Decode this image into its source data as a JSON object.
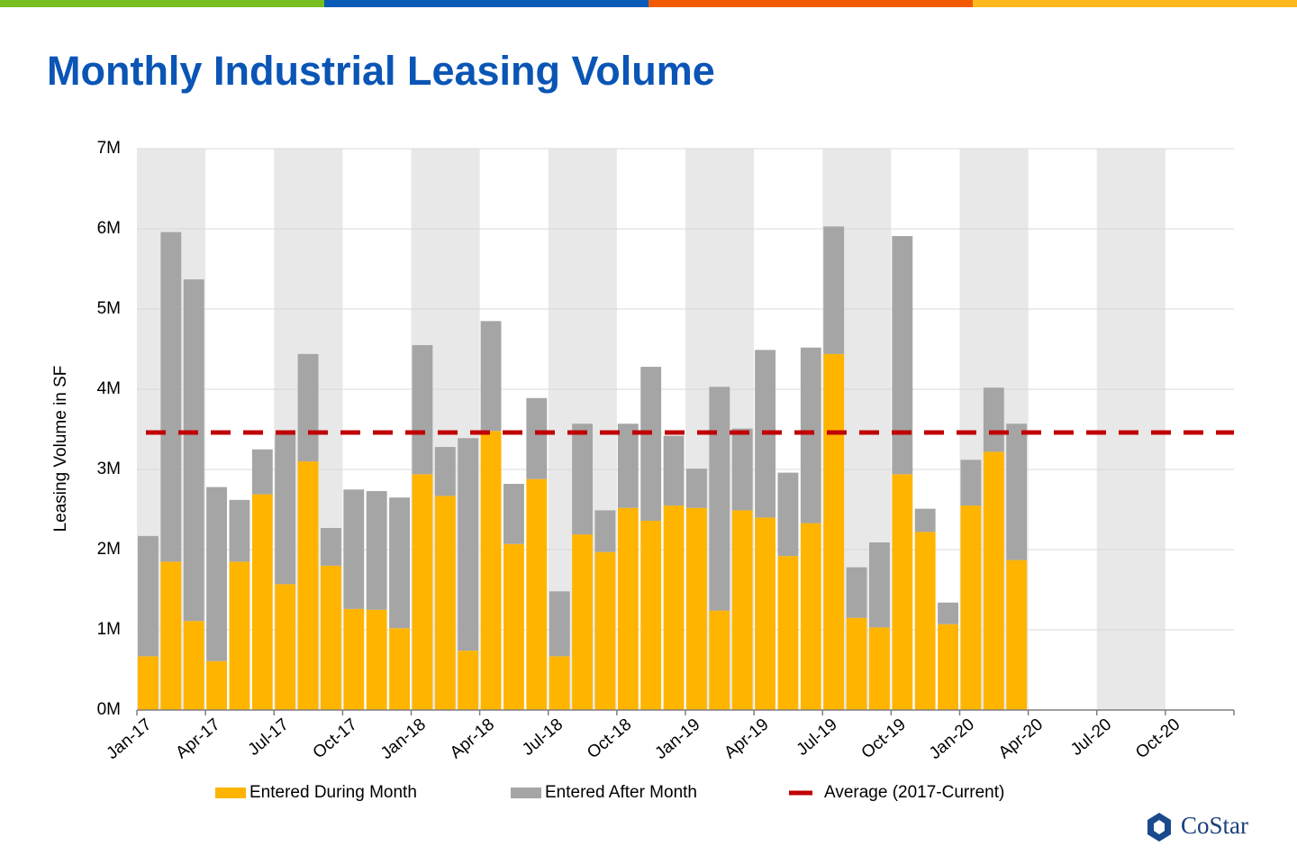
{
  "chart_data": {
    "type": "stacked_bar",
    "title": "Monthly Industrial Leasing Volume",
    "y_label": "Leasing Volume  in SF",
    "categories": [
      "Jan-17",
      null,
      null,
      "Apr-17",
      null,
      null,
      "Jul-17",
      null,
      null,
      "Oct-17",
      null,
      null,
      "Jan-18",
      null,
      null,
      "Apr-18",
      null,
      null,
      "Jul-18",
      null,
      null,
      "Oct-18",
      null,
      null,
      "Jan-19",
      null,
      null,
      "Apr-19",
      null,
      null,
      "Jul-19",
      null,
      null,
      "Oct-19",
      null,
      null,
      "Jan-20",
      null,
      null,
      "Apr-20",
      null,
      null,
      "Jul-20",
      null,
      null,
      "Oct-20",
      null,
      null
    ],
    "series": [
      {
        "name": "Entered During Month",
        "color": "#ffb400",
        "values": [
          0.67,
          1.85,
          1.11,
          0.61,
          1.85,
          2.69,
          1.57,
          3.1,
          1.8,
          1.26,
          1.25,
          1.02,
          2.94,
          2.67,
          0.74,
          3.48,
          2.07,
          2.88,
          0.67,
          2.19,
          1.97,
          2.52,
          2.36,
          2.55,
          2.52,
          1.24,
          2.49,
          2.4,
          1.92,
          2.33,
          4.44,
          1.15,
          1.03,
          2.94,
          2.22,
          1.07,
          2.55,
          3.22,
          1.87,
          null,
          null,
          null,
          null,
          null,
          null,
          null,
          null,
          null
        ]
      },
      {
        "name": "Entered After Month",
        "color": "#a5a5a5",
        "values": [
          1.5,
          4.11,
          4.26,
          2.17,
          0.77,
          0.56,
          1.87,
          1.34,
          0.47,
          1.49,
          1.48,
          1.63,
          1.61,
          0.61,
          2.65,
          1.37,
          0.75,
          1.01,
          0.81,
          1.38,
          0.52,
          1.05,
          1.92,
          0.87,
          0.49,
          2.79,
          1.02,
          2.09,
          1.04,
          2.19,
          1.59,
          0.63,
          1.06,
          2.97,
          0.29,
          0.27,
          0.57,
          0.8,
          1.7,
          null,
          null,
          null,
          null,
          null,
          null,
          null,
          null,
          null
        ]
      }
    ],
    "average": {
      "name": "Average (2017-Current)",
      "value": 3.46,
      "color": "#c00000"
    },
    "ylim": [
      0,
      7
    ],
    "yticks": [
      {
        "value": 0,
        "label": "0M"
      },
      {
        "value": 1,
        "label": "1M"
      },
      {
        "value": 2,
        "label": "2M"
      },
      {
        "value": 3,
        "label": "3M"
      },
      {
        "value": 4,
        "label": "4M"
      },
      {
        "value": 5,
        "label": "5M"
      },
      {
        "value": 6,
        "label": "6M"
      },
      {
        "value": 7,
        "label": "7M"
      }
    ],
    "grid": true,
    "legend": "bottom",
    "logo": "CoStar"
  }
}
